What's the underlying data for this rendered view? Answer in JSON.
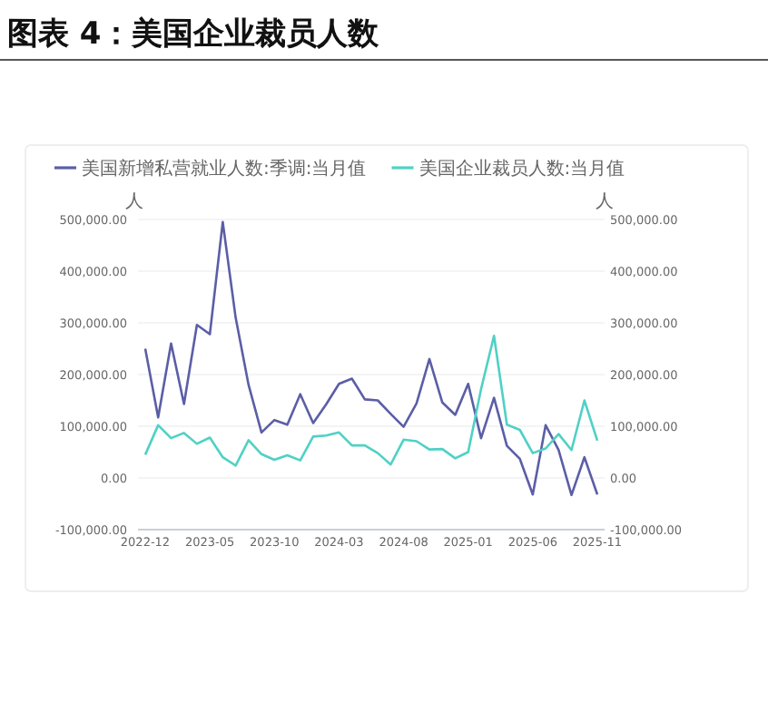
{
  "chart_data": {
    "type": "line",
    "title": "图表 4：美国企业裁员人数",
    "categories": [
      "2022-12",
      null,
      null,
      null,
      null,
      "2023-05",
      null,
      null,
      null,
      null,
      "2023-10",
      null,
      null,
      null,
      null,
      "2024-03",
      null,
      null,
      null,
      null,
      "2024-08",
      null,
      null,
      null,
      null,
      "2025-01",
      null,
      null,
      null,
      null,
      "2025-06",
      null,
      null,
      null,
      null,
      "2025-11"
    ],
    "ylabel": "人",
    "y2label": "人",
    "series": [
      {
        "name": "美国新增私营就业人数:季调:当月值",
        "color": "#5b5ea6",
        "values": [
          250000,
          117000,
          260000,
          143000,
          296000,
          278000,
          495000,
          310000,
          180000,
          88000,
          112000,
          103000,
          162000,
          106000,
          142000,
          182000,
          192000,
          152000,
          150000,
          124000,
          99000,
          144000,
          230000,
          146000,
          122000,
          182000,
          77000,
          155000,
          62000,
          37000,
          -32000,
          102000,
          54000,
          -33000,
          40000,
          -32000
        ]
      },
      {
        "name": "美国企业裁员人数:当月值",
        "color": "#4fd1c5",
        "values": [
          45000,
          102000,
          77000,
          87000,
          66000,
          78000,
          40000,
          24000,
          73000,
          46000,
          35000,
          44000,
          34000,
          80000,
          82000,
          88000,
          63000,
          63000,
          48000,
          26000,
          74000,
          71000,
          55000,
          56000,
          38000,
          50000,
          172000,
          275000,
          103000,
          93000,
          48000,
          57000,
          85000,
          54000,
          150000,
          72000
        ]
      }
    ],
    "ylim": [
      -100000,
      500000
    ],
    "yticks": [
      {
        "value": -100000,
        "label": "-100,000.00"
      },
      {
        "value": 0,
        "label": "0.00"
      },
      {
        "value": 100000,
        "label": "100,000.00"
      },
      {
        "value": 200000,
        "label": "200,000.00"
      },
      {
        "value": 300000,
        "label": "300,000.00"
      },
      {
        "value": 400000,
        "label": "400,000.00"
      },
      {
        "value": 500000,
        "label": "500,000.00"
      }
    ],
    "y2lim": [
      -100000,
      500000
    ],
    "y2ticks": [
      {
        "value": -100000,
        "label": "-100,000.00"
      },
      {
        "value": 0,
        "label": "0.00"
      },
      {
        "value": 100000,
        "label": "100,000.00"
      },
      {
        "value": 200000,
        "label": "200,000.00"
      },
      {
        "value": 300000,
        "label": "300,000.00"
      },
      {
        "value": 400000,
        "label": "400,000.00"
      },
      {
        "value": 500000,
        "label": "500,000.00"
      }
    ],
    "grid": "y",
    "legend": "top left",
    "marker": "none",
    "line_style": "solid"
  }
}
